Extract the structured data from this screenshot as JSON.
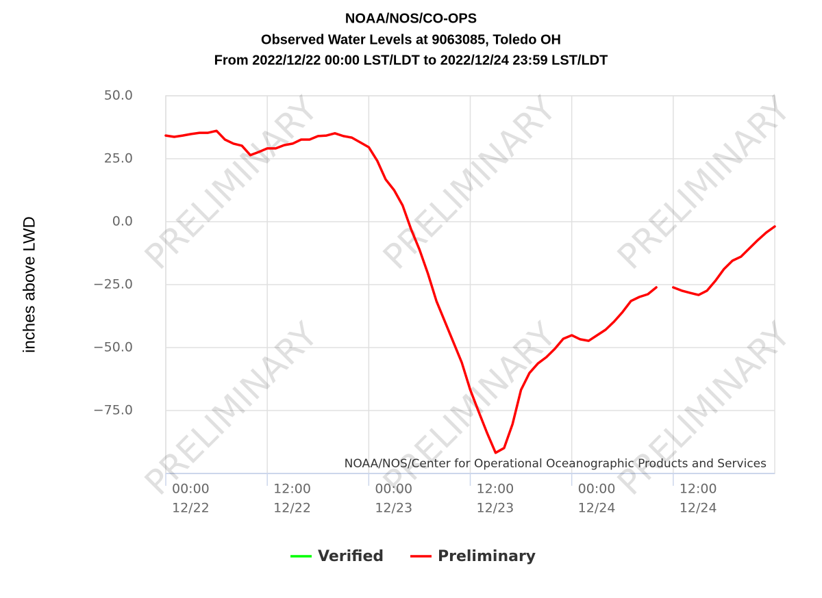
{
  "chart_data": {
    "type": "line",
    "title": [
      "NOAA/NOS/CO-OPS",
      "Observed Water Levels at 9063085, Toledo OH",
      "From 2022/12/22 00:00 LST/LDT to 2022/12/24 23:59 LST/LDT"
    ],
    "y_label": "inches above LWD",
    "credit": "NOAA/NOS/Center for Operational Oceanographic Products and Services",
    "watermark": "PRELIMINARY",
    "xlim": [
      "12/22 00:00",
      "12/25 00:00"
    ],
    "xticks": [
      {
        "value": "12/22 00:00",
        "label": [
          "00:00",
          "12/22"
        ]
      },
      {
        "value": "12/22 12:00",
        "label": [
          "12:00",
          "12/22"
        ]
      },
      {
        "value": "12/23 00:00",
        "label": [
          "00:00",
          "12/23"
        ]
      },
      {
        "value": "12/23 12:00",
        "label": [
          "12:00",
          "12/23"
        ]
      },
      {
        "value": "12/24 00:00",
        "label": [
          "00:00",
          "12/24"
        ]
      },
      {
        "value": "12/24 12:00",
        "label": [
          "12:00",
          "12/24"
        ]
      }
    ],
    "ylim": [
      -100,
      50
    ],
    "yticks": [
      {
        "value": 50,
        "label": "50.0"
      },
      {
        "value": 25,
        "label": "25.0"
      },
      {
        "value": 0,
        "label": "0.0"
      },
      {
        "value": -25,
        "label": "−25.0"
      },
      {
        "value": -50,
        "label": "−50.0"
      },
      {
        "value": -75,
        "label": "−75.0"
      }
    ],
    "grid": true,
    "legend": "bottom",
    "series": [
      {
        "name": "Verified",
        "color": "#00ff00",
        "x": [],
        "values": []
      },
      {
        "name": "Preliminary",
        "color": "#ff0000",
        "x": [
          "12/22 00:00",
          "12/22 01:00",
          "12/22 02:00",
          "12/22 03:00",
          "12/22 04:00",
          "12/22 05:00",
          "12/22 06:00",
          "12/22 07:00",
          "12/22 08:00",
          "12/22 09:00",
          "12/22 10:00",
          "12/22 11:00",
          "12/22 12:00",
          "12/22 13:00",
          "12/22 14:00",
          "12/22 15:00",
          "12/22 16:00",
          "12/22 17:00",
          "12/22 18:00",
          "12/22 19:00",
          "12/22 20:00",
          "12/22 21:00",
          "12/22 22:00",
          "12/22 23:00",
          "12/23 00:00",
          "12/23 01:00",
          "12/23 02:00",
          "12/23 03:00",
          "12/23 04:00",
          "12/23 05:00",
          "12/23 06:00",
          "12/23 07:00",
          "12/23 08:00",
          "12/23 09:00",
          "12/23 10:00",
          "12/23 11:00",
          "12/23 12:00",
          "12/23 13:00",
          "12/23 14:00",
          "12/23 15:00",
          "12/23 16:00",
          "12/23 17:00",
          "12/23 18:00",
          "12/23 19:00",
          "12/23 20:00",
          "12/23 21:00",
          "12/23 22:00",
          "12/23 23:00",
          "12/24 00:00",
          "12/24 01:00",
          "12/24 02:00",
          "12/24 03:00",
          "12/24 04:00",
          "12/24 05:00",
          "12/24 06:00",
          "12/24 07:00",
          "12/24 08:00",
          "12/24 09:00",
          "12/24 10:00",
          "12/24 11:00",
          "12/24 12:00",
          "12/24 13:00",
          "12/24 14:00",
          "12/24 15:00",
          "12/24 16:00",
          "12/24 17:00",
          "12/24 18:00",
          "12/24 19:00",
          "12/24 20:00",
          "12/24 21:00",
          "12/24 22:00",
          "12/24 23:00",
          "12/25 00:00"
        ],
        "values": [
          34.2,
          33.7,
          34.2,
          34.8,
          35.3,
          35.3,
          36.1,
          32.6,
          31.0,
          30.2,
          26.4,
          27.7,
          29.1,
          29.1,
          30.4,
          31.0,
          32.6,
          32.6,
          34.0,
          34.2,
          35.1,
          34.0,
          33.4,
          31.5,
          29.6,
          24.2,
          16.8,
          12.5,
          6.5,
          -3.0,
          -11.1,
          -20.7,
          -31.5,
          -39.7,
          -47.8,
          -56.0,
          -66.8,
          -75.5,
          -84.0,
          -91.8,
          -89.9,
          -80.4,
          -66.8,
          -60.1,
          -56.3,
          -53.8,
          -50.5,
          -46.5,
          -45.1,
          -46.7,
          -47.3,
          -45.1,
          -42.9,
          -39.7,
          -35.9,
          -31.5,
          -29.9,
          -28.8,
          -26.1,
          null,
          -26.1,
          -27.4,
          -28.3,
          -29.1,
          -27.4,
          -23.4,
          -18.8,
          -15.5,
          -13.9,
          -10.6,
          -7.3,
          -4.3,
          -1.9
        ]
      }
    ]
  }
}
